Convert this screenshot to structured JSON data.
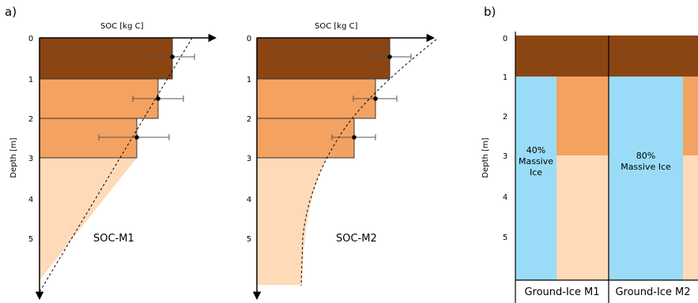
{
  "panels": {
    "a": "a)",
    "b": "b)"
  },
  "axis": {
    "soc_label": "SOC [kg C]",
    "soc_label_2": "SOC [kg C]",
    "depth_label": "Depth [m]",
    "depth_ticks": [
      "0",
      "1",
      "2",
      "3",
      "4",
      "5"
    ]
  },
  "models": [
    {
      "name": "SOC-M1"
    },
    {
      "name": "SOC-M2"
    }
  ],
  "ground_ice": [
    {
      "name": "Ground-Ice M1",
      "ice_percent": "40%",
      "ice_text_1": "Massive",
      "ice_text_2": "Ice"
    },
    {
      "name": "Ground-Ice M2",
      "ice_percent": "80%",
      "ice_text_1": "Massive Ice"
    }
  ],
  "colors": {
    "layer_0_1": "#8b4513",
    "layer_1_3": "#f4a261",
    "layer_deep": "#ffdab9",
    "massive_ice": "#9adcf8",
    "axis": "#000000"
  }
}
